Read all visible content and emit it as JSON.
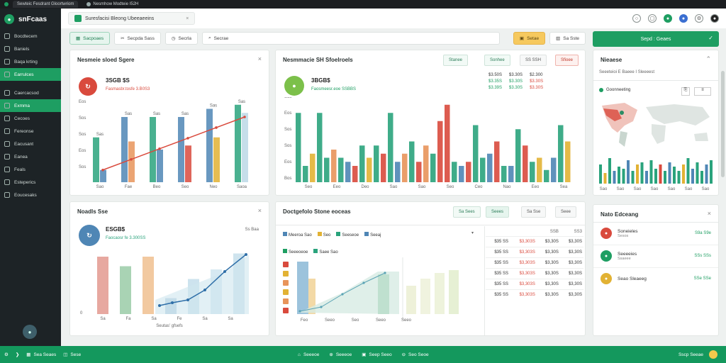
{
  "browser": {
    "tabs": [
      {
        "label": "Sewteic Fesdrant Gloortwriom"
      },
      {
        "label": "Nesmhow Modteie I52H"
      }
    ]
  },
  "sidebar": {
    "brand": "snFcaas",
    "items": [
      {
        "label": "Bocdtecem",
        "active": false
      },
      {
        "label": "Baniels",
        "active": false
      },
      {
        "label": "Baqa krting",
        "active": false
      },
      {
        "label": "Earrulces",
        "active": true
      },
      {
        "label": "Caercacsod",
        "active": false
      },
      {
        "label": "Exmma",
        "active": true
      },
      {
        "label": "Cecoes",
        "active": false
      },
      {
        "label": "Fereonse",
        "active": false
      },
      {
        "label": "Eacusant",
        "active": false
      },
      {
        "label": "Eanea",
        "active": false
      },
      {
        "label": "Feals",
        "active": false
      },
      {
        "label": "Esteperics",
        "active": false
      },
      {
        "label": "Eoucesaks",
        "active": false
      }
    ]
  },
  "header": {
    "title": "Suresfacisi Bleong Ubeeaeeins"
  },
  "toolbar": {
    "buttons": [
      "Sacpoaes",
      "Secpda Sass",
      "Secrla",
      "Secrae"
    ],
    "right_buttons": [
      "Setae",
      "Sa Sste"
    ]
  },
  "cta": {
    "label": "Sepd : Geaes"
  },
  "panel_a": {
    "title": "Nesmeie sloed Sgere",
    "kpi_value": "3SGB $S",
    "kpi_sub": "Fasmasbr.tosfe 3.B0S3",
    "categories": [
      "Sao",
      "Fae",
      "Beo",
      "Seo",
      "Neo",
      "Saoa"
    ],
    "yticks": [
      "Sos",
      "Eos",
      "Sos",
      "Sos",
      "Eos"
    ]
  },
  "panel_b": {
    "title": "Nesmmacie SH Sfoelroels",
    "kpi_value": "3BGB$",
    "kpi_sub": "Faosmeesr.eoe SSBBS",
    "pills": [
      "Stanee",
      "Sonhee",
      "SS SSH",
      "Sfioee"
    ],
    "mini_stats": [
      [
        "$3.50S",
        "$3.30S",
        "$2.300"
      ],
      [
        "$3.35S",
        "$3.30S",
        "$3.30S"
      ],
      [
        "$3.39S",
        "$3.30S",
        "$3.30S"
      ]
    ],
    "categories": [
      "Seo",
      "Eeo",
      "Deo",
      "Sao",
      "Sao",
      "Seo",
      "Ceo",
      "Nao",
      "Eeo",
      "Sea"
    ],
    "yticks": [
      "Bos",
      "Eos",
      "Sos",
      "Sos",
      "Eos",
      "Sos"
    ]
  },
  "panel_c": {
    "title": "Nieaese",
    "subtitle": "Seeeteioi E Baeee I Sleeeest",
    "map_label": "Goonneeting",
    "categories": [
      "Sao",
      "Sao",
      "Sao",
      "Sao",
      "Sao",
      "Sao",
      "Sao"
    ]
  },
  "panel_d": {
    "title": "Noadls Sse",
    "kpi_value": "ESGB$",
    "kpi_sub": "Faocaosr fe 3.300SS",
    "kpi_tag": "Ss Baa",
    "categories": [
      "Sa",
      "Fa",
      "Sa",
      "Fe",
      "Sa",
      "Sa"
    ],
    "xlabel": "Seutas' gfsefs"
  },
  "panel_e": {
    "title": "Doctgefolo Stone eoceas",
    "pills": [
      "Sa Sees",
      "Seees",
      "Sa Sse",
      "Seee"
    ],
    "legend1": [
      "Meeroa Sao",
      "Seo",
      "Seeseoe",
      "Seeaj"
    ],
    "legend2": [
      "Seeeoeoe",
      "Saee Sao"
    ],
    "xcats": [
      "Feo",
      "Seeo",
      "Seo",
      "Seeo",
      "Seeo"
    ],
    "table_rows": [
      [
        "$35 SS",
        "$3,303S",
        "$3,30S",
        "$3,30S"
      ],
      [
        "$35 SS",
        "$3,303S",
        "$3,30S",
        "$3,30S"
      ],
      [
        "$35 SS",
        "$3,303S",
        "$3,30S",
        "$3,30S"
      ],
      [
        "$35 SS",
        "$3,303S",
        "$3,30S",
        "$3,30S"
      ],
      [
        "$35 SS",
        "$3,303S",
        "$3,30S",
        "$3,30S"
      ],
      [
        "$35 SS",
        "$3,303S",
        "$3,30S",
        "$3,30S"
      ]
    ],
    "table_header": [
      "",
      "",
      "SSB",
      "SS3"
    ]
  },
  "panel_f": {
    "title": "Nato Edceang",
    "items": [
      {
        "label": "Soneieles",
        "sub": "Sesos",
        "time": "S9a S9e",
        "color": "#d94a3d"
      },
      {
        "label": "Seeeeies",
        "sub": "Ssaeee",
        "time": "SSs SSs",
        "color": "#1e9e62"
      },
      {
        "label": "Seao Sleaeeg",
        "sub": "",
        "time": "SSe SSe",
        "color": "#e2b234"
      }
    ]
  },
  "statusbar": {
    "left": [
      "Sea Seaes",
      "Sese"
    ],
    "center": [
      "Seeeoe",
      "Seeeoe",
      "Seep Seeo",
      "Seo Seoe"
    ],
    "right": "Sscp Seeae"
  },
  "colors": {
    "green": "#1e9e62",
    "red": "#d94a3d",
    "teal": "#2aa37c",
    "blue": "#4f86b5",
    "yellow": "#e2b234",
    "orange": "#e8945a"
  }
}
